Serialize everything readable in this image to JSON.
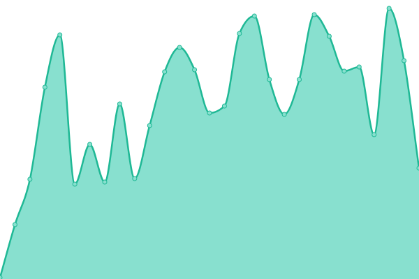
{
  "chart_data": {
    "type": "area",
    "categories": [
      null,
      null,
      null,
      null,
      null,
      null,
      null,
      null,
      null,
      null,
      null,
      null,
      null,
      null,
      null,
      null,
      null,
      null,
      null,
      null,
      null,
      null,
      null,
      null,
      null,
      null,
      null,
      null,
      null
    ],
    "values": [
      2,
      78,
      143,
      275,
      350,
      136,
      193,
      139,
      251,
      144,
      220,
      297,
      332,
      300,
      238,
      248,
      352,
      377,
      286,
      236,
      286,
      379,
      348,
      298,
      304,
      207,
      388,
      313,
      159
    ],
    "color": "#1fb895",
    "fill": "#88e0cf",
    "ylim": [
      0,
      400
    ]
  }
}
